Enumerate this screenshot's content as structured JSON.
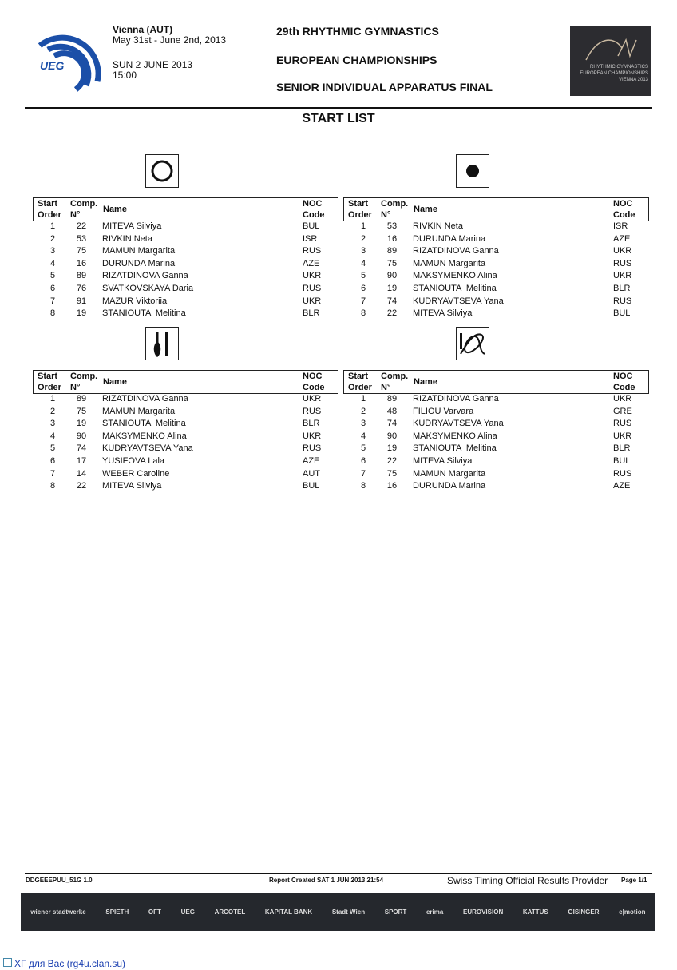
{
  "header": {
    "venue": "Vienna (AUT)",
    "dates": "May 31st - June 2nd, 2013",
    "day": "SUN 2 JUNE 2013",
    "time": "15:00",
    "title1": "29th RHYTHMIC GYMNASTICS",
    "title2": "EUROPEAN CHAMPIONSHIPS",
    "title3": "SENIOR INDIVIDUAL APPARATUS FINAL",
    "logo_text": "UEG",
    "event_logo": "RHYTHMIC GYMNASTICS EUROPEAN CHAMPIONSHIPS VIENNA 2013"
  },
  "doc_title": "START LIST",
  "columns": {
    "start": "Start",
    "order": "Order",
    "comp": "Comp.",
    "no": "N°",
    "name": "Name",
    "noc": "NOC",
    "code": "Code"
  },
  "tables": [
    {
      "apparatus": "hoop-icon",
      "rows": [
        [
          "1",
          "22",
          "MITEVA Silviya",
          "BUL"
        ],
        [
          "2",
          "53",
          "RIVKIN Neta",
          "ISR"
        ],
        [
          "3",
          "75",
          "MAMUN Margarita",
          "RUS"
        ],
        [
          "4",
          "16",
          "DURUNDA Marina",
          "AZE"
        ],
        [
          "5",
          "89",
          "RIZATDINOVA Ganna",
          "UKR"
        ],
        [
          "6",
          "76",
          "SVATKOVSKAYA Daria",
          "RUS"
        ],
        [
          "7",
          "91",
          "MAZUR Viktoriia",
          "UKR"
        ],
        [
          "8",
          "19",
          "STANIOUTA  Melitina",
          "BLR"
        ]
      ]
    },
    {
      "apparatus": "ball-icon",
      "rows": [
        [
          "1",
          "53",
          "RIVKIN Neta",
          "ISR"
        ],
        [
          "2",
          "16",
          "DURUNDA Marina",
          "AZE"
        ],
        [
          "3",
          "89",
          "RIZATDINOVA Ganna",
          "UKR"
        ],
        [
          "4",
          "75",
          "MAMUN Margarita",
          "RUS"
        ],
        [
          "5",
          "90",
          "MAKSYMENKO Alina",
          "UKR"
        ],
        [
          "6",
          "19",
          "STANIOUTA  Melitina",
          "BLR"
        ],
        [
          "7",
          "74",
          "KUDRYAVTSEVA Yana",
          "RUS"
        ],
        [
          "8",
          "22",
          "MITEVA Silviya",
          "BUL"
        ]
      ]
    },
    {
      "apparatus": "clubs-icon",
      "rows": [
        [
          "1",
          "89",
          "RIZATDINOVA Ganna",
          "UKR"
        ],
        [
          "2",
          "75",
          "MAMUN Margarita",
          "RUS"
        ],
        [
          "3",
          "19",
          "STANIOUTA  Melitina",
          "BLR"
        ],
        [
          "4",
          "90",
          "MAKSYMENKO Alina",
          "UKR"
        ],
        [
          "5",
          "74",
          "KUDRYAVTSEVA Yana",
          "RUS"
        ],
        [
          "6",
          "17",
          "YUSIFOVA Lala",
          "AZE"
        ],
        [
          "7",
          "14",
          "WEBER Caroline",
          "AUT"
        ],
        [
          "8",
          "22",
          "MITEVA Silviya",
          "BUL"
        ]
      ]
    },
    {
      "apparatus": "ribbon-icon",
      "rows": [
        [
          "1",
          "89",
          "RIZATDINOVA Ganna",
          "UKR"
        ],
        [
          "2",
          "48",
          "FILIOU Varvara",
          "GRE"
        ],
        [
          "3",
          "74",
          "KUDRYAVTSEVA Yana",
          "RUS"
        ],
        [
          "4",
          "90",
          "MAKSYMENKO Alina",
          "UKR"
        ],
        [
          "5",
          "19",
          "STANIOUTA  Melitina",
          "BLR"
        ],
        [
          "6",
          "22",
          "MITEVA Silviya",
          "BUL"
        ],
        [
          "7",
          "75",
          "MAMUN Margarita",
          "RUS"
        ],
        [
          "8",
          "16",
          "DURUNDA Marina",
          "AZE"
        ]
      ]
    }
  ],
  "footer": {
    "code": "DDGEEEPUU_51G 1.0",
    "report": "Report Created  SAT 1 JUN 2013 21:54",
    "provider": "Swiss Timing Official Results Provider",
    "page": "Page 1/1",
    "sponsors": [
      "wiener stadtwerke",
      "SPIETH",
      "OFT",
      "UEG",
      "ARCOTEL",
      "KAPITAL BANK",
      "Stadt Wien",
      "SPORT",
      "erima",
      "EUROVISION",
      "KATTUS",
      "GISINGER",
      "e|motion"
    ]
  },
  "link": "ХГ для Вас (rg4u.clan.su)"
}
